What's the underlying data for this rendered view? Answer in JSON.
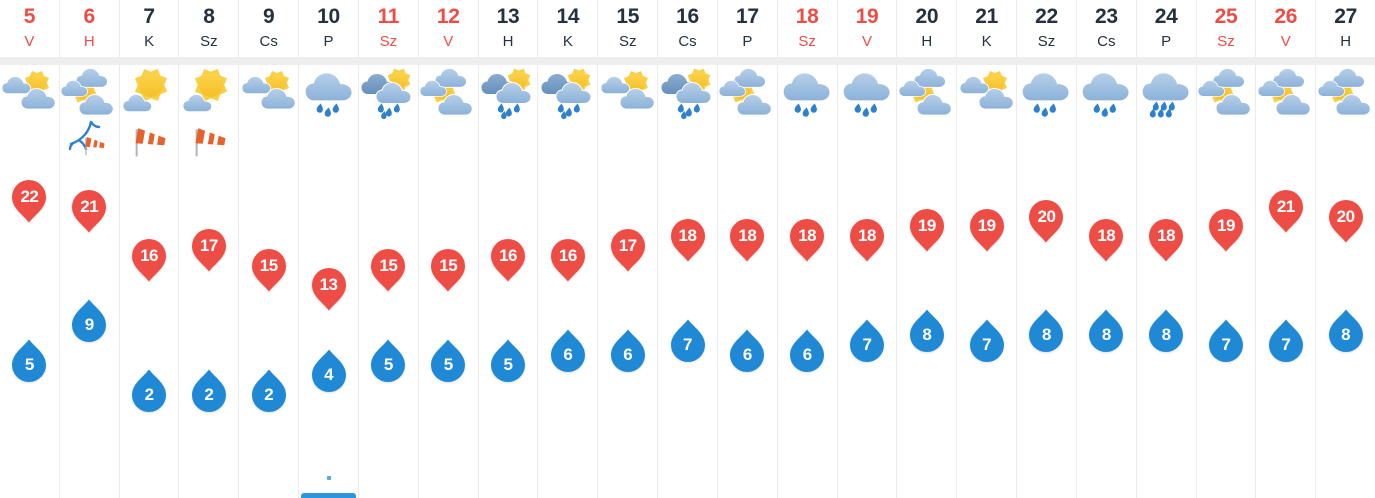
{
  "colors": {
    "accent_red": "#ee4d45",
    "accent_blue": "#2089d5",
    "text_dark": "#25313f",
    "band_gray": "#eeeeee",
    "border_gray": "#ebebeb",
    "sun": "#f8c62e",
    "sun_ray": "#f9cf49",
    "cloud_light_top": "#b6cfe9",
    "cloud_light": "#8cb2d9",
    "cloud_dark_top": "#8aaccf",
    "cloud_dark": "#6690bd",
    "rain_drop": "#2e81cd",
    "windsock_orange": "#e8602c",
    "pole_gray": "#b5b5b5",
    "precip_bar_blue": "#2b95dd",
    "precip_dot_blue": "#56a8e2"
  },
  "forecast": {
    "days": [
      {
        "date": "5",
        "day": "V",
        "highlight": true,
        "icon": "partly-cloudy",
        "wind": null,
        "high": 22,
        "low": 5
      },
      {
        "date": "6",
        "day": "H",
        "highlight": true,
        "icon": "sun-between-clouds",
        "wind": "storm-windsock",
        "high": 21,
        "low": 9
      },
      {
        "date": "7",
        "day": "K",
        "highlight": false,
        "icon": "mostly-sunny",
        "wind": "windsock",
        "high": 16,
        "low": 2
      },
      {
        "date": "8",
        "day": "Sz",
        "highlight": false,
        "icon": "mostly-sunny",
        "wind": "windsock",
        "high": 17,
        "low": 2
      },
      {
        "date": "9",
        "day": "Cs",
        "highlight": false,
        "icon": "partly-cloudy",
        "wind": null,
        "high": 15,
        "low": 2
      },
      {
        "date": "10",
        "day": "P",
        "highlight": false,
        "icon": "rain",
        "wind": null,
        "high": 13,
        "low": 4,
        "precip_bar": true,
        "precip_dot": true
      },
      {
        "date": "11",
        "day": "Sz",
        "highlight": true,
        "icon": "sun-shower",
        "wind": null,
        "high": 15,
        "low": 5
      },
      {
        "date": "12",
        "day": "V",
        "highlight": true,
        "icon": "sun-between-clouds",
        "wind": null,
        "high": 15,
        "low": 5
      },
      {
        "date": "13",
        "day": "H",
        "highlight": false,
        "icon": "sun-shower",
        "wind": null,
        "high": 16,
        "low": 5
      },
      {
        "date": "14",
        "day": "K",
        "highlight": false,
        "icon": "sun-shower",
        "wind": null,
        "high": 16,
        "low": 6
      },
      {
        "date": "15",
        "day": "Sz",
        "highlight": false,
        "icon": "partly-cloudy",
        "wind": null,
        "high": 17,
        "low": 6
      },
      {
        "date": "16",
        "day": "Cs",
        "highlight": false,
        "icon": "sun-shower",
        "wind": null,
        "high": 18,
        "low": 7
      },
      {
        "date": "17",
        "day": "P",
        "highlight": false,
        "icon": "sun-between-clouds",
        "wind": null,
        "high": 18,
        "low": 6
      },
      {
        "date": "18",
        "day": "Sz",
        "highlight": true,
        "icon": "rain",
        "wind": null,
        "high": 18,
        "low": 6
      },
      {
        "date": "19",
        "day": "V",
        "highlight": true,
        "icon": "rain",
        "wind": null,
        "high": 18,
        "low": 7
      },
      {
        "date": "20",
        "day": "H",
        "highlight": false,
        "icon": "sun-between-clouds",
        "wind": null,
        "high": 19,
        "low": 8
      },
      {
        "date": "21",
        "day": "K",
        "highlight": false,
        "icon": "partly-cloudy",
        "wind": null,
        "high": 19,
        "low": 7
      },
      {
        "date": "22",
        "day": "Sz",
        "highlight": false,
        "icon": "rain",
        "wind": null,
        "high": 20,
        "low": 8
      },
      {
        "date": "23",
        "day": "Cs",
        "highlight": false,
        "icon": "rain",
        "wind": null,
        "high": 18,
        "low": 8
      },
      {
        "date": "24",
        "day": "P",
        "highlight": false,
        "icon": "rain-heavy",
        "wind": null,
        "high": 18,
        "low": 8
      },
      {
        "date": "25",
        "day": "Sz",
        "highlight": true,
        "icon": "sun-between-clouds",
        "wind": null,
        "high": 19,
        "low": 7
      },
      {
        "date": "26",
        "day": "V",
        "highlight": true,
        "icon": "sun-between-clouds",
        "wind": null,
        "high": 21,
        "low": 7
      },
      {
        "date": "27",
        "day": "H",
        "highlight": false,
        "icon": "sun-between-clouds",
        "wind": null,
        "high": 20,
        "low": 8
      }
    ]
  }
}
